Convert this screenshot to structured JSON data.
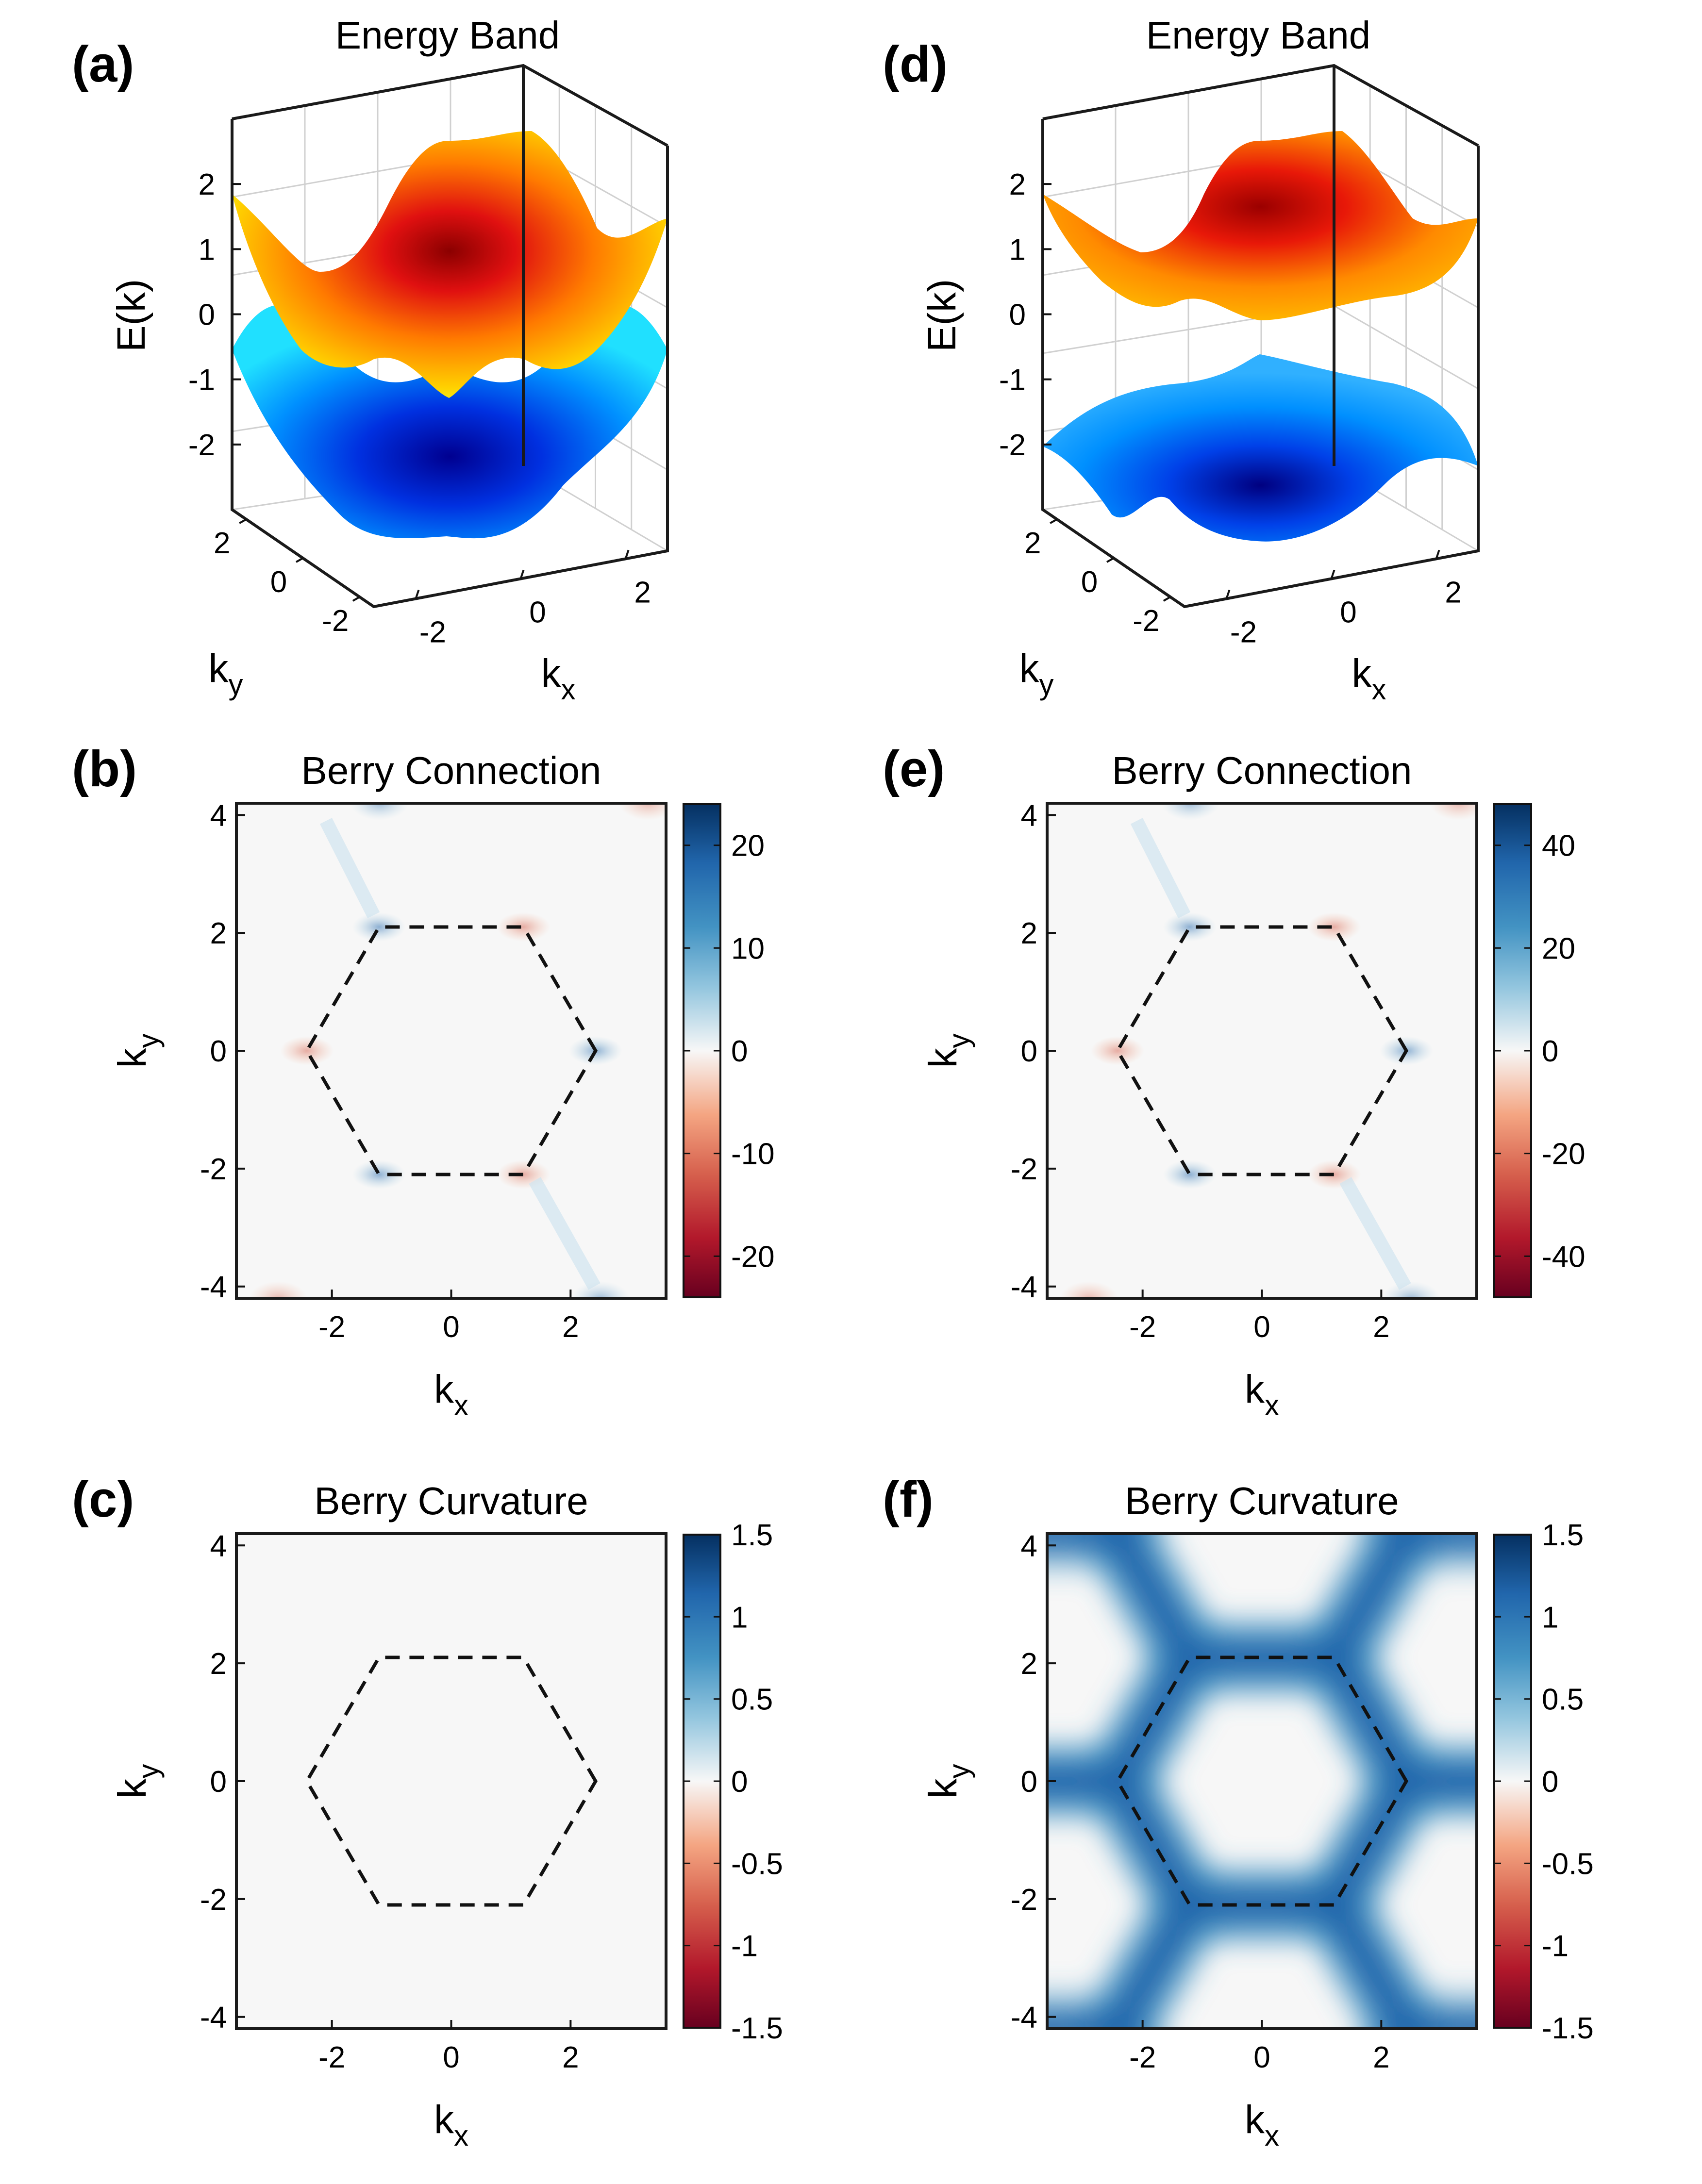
{
  "colors": {
    "frame": "#1a1a1a",
    "plot_bg": "#f7f7f7",
    "diverging_low": "#67001f",
    "diverging_mid": "#f7f7f7",
    "diverging_high": "#053061",
    "surface_colormap": "jet"
  },
  "chart_data": [
    {
      "panel": "(a)",
      "type": "surface3d",
      "title": "Energy Band",
      "xlabel": "k",
      "xlabel_sub": "x",
      "ylabel": "k",
      "ylabel_sub": "y",
      "zlabel": "E(k)",
      "x_ticks": [
        "-2",
        "0",
        "2"
      ],
      "y_ticks": [
        "-2",
        "0",
        "2"
      ],
      "z_ticks": [
        "2",
        "1",
        "0",
        "-1",
        "-2"
      ],
      "zlim": [
        -3,
        3
      ],
      "gap": 0
    },
    {
      "panel": "(b)",
      "type": "heatmap",
      "title": "Berry Connection",
      "xlabel": "k",
      "xlabel_sub": "x",
      "ylabel": "k",
      "ylabel_sub": "y",
      "xlim": [
        -3.6,
        3.6
      ],
      "ylim": [
        -4.2,
        4.2
      ],
      "x_ticks": [
        "-2",
        "0",
        "2"
      ],
      "y_ticks": [
        "4",
        "2",
        "0",
        "-2",
        "-4"
      ],
      "colorbar_ticks": [
        "20",
        "10",
        "0",
        "-10",
        "-20"
      ],
      "clim": [
        -24,
        24
      ],
      "hexagon": [
        [
          2.42,
          0
        ],
        [
          1.21,
          2.1
        ],
        [
          -1.21,
          2.1
        ],
        [
          -2.42,
          0
        ],
        [
          -1.21,
          -2.1
        ],
        [
          1.21,
          -2.1
        ]
      ]
    },
    {
      "panel": "(c)",
      "type": "heatmap",
      "title": "Berry Curvature",
      "xlabel": "k",
      "xlabel_sub": "x",
      "ylabel": "k",
      "ylabel_sub": "y",
      "xlim": [
        -3.6,
        3.6
      ],
      "ylim": [
        -4.2,
        4.2
      ],
      "x_ticks": [
        "-2",
        "0",
        "2"
      ],
      "y_ticks": [
        "4",
        "2",
        "0",
        "-2",
        "-4"
      ],
      "colorbar_ticks": [
        "1.5",
        "1",
        "0.5",
        "0",
        "-0.5",
        "-1",
        "-1.5"
      ],
      "clim": [
        -1.5,
        1.5
      ],
      "hexagon": [
        [
          2.42,
          0
        ],
        [
          1.21,
          2.1
        ],
        [
          -1.21,
          2.1
        ],
        [
          -2.42,
          0
        ],
        [
          -1.21,
          -2.1
        ],
        [
          1.21,
          -2.1
        ]
      ]
    },
    {
      "panel": "(d)",
      "type": "surface3d",
      "title": "Energy Band",
      "xlabel": "k",
      "xlabel_sub": "x",
      "ylabel": "k",
      "ylabel_sub": "y",
      "zlabel": "E(k)",
      "x_ticks": [
        "-2",
        "0",
        "2"
      ],
      "y_ticks": [
        "-2",
        "0",
        "2"
      ],
      "z_ticks": [
        "2",
        "1",
        "0",
        "-1",
        "-2"
      ],
      "zlim": [
        -3,
        3
      ],
      "gap": 1
    },
    {
      "panel": "(e)",
      "type": "heatmap",
      "title": "Berry Connection",
      "xlabel": "k",
      "xlabel_sub": "x",
      "ylabel": "k",
      "ylabel_sub": "y",
      "xlim": [
        -3.6,
        3.6
      ],
      "ylim": [
        -4.2,
        4.2
      ],
      "x_ticks": [
        "-2",
        "0",
        "2"
      ],
      "y_ticks": [
        "4",
        "2",
        "0",
        "-2",
        "-4"
      ],
      "colorbar_ticks": [
        "40",
        "20",
        "0",
        "-20",
        "-40"
      ],
      "clim": [
        -48,
        48
      ],
      "hexagon": [
        [
          2.42,
          0
        ],
        [
          1.21,
          2.1
        ],
        [
          -1.21,
          2.1
        ],
        [
          -2.42,
          0
        ],
        [
          -1.21,
          -2.1
        ],
        [
          1.21,
          -2.1
        ]
      ]
    },
    {
      "panel": "(f)",
      "type": "heatmap",
      "title": "Berry Curvature",
      "xlabel": "k",
      "xlabel_sub": "x",
      "ylabel": "k",
      "ylabel_sub": "y",
      "xlim": [
        -3.6,
        3.6
      ],
      "ylim": [
        -4.2,
        4.2
      ],
      "x_ticks": [
        "-2",
        "0",
        "2"
      ],
      "y_ticks": [
        "4",
        "2",
        "0",
        "-2",
        "-4"
      ],
      "colorbar_ticks": [
        "1.5",
        "1",
        "0.5",
        "0",
        "-0.5",
        "-1",
        "-1.5"
      ],
      "clim": [
        -1.5,
        1.5
      ],
      "hexagon": [
        [
          2.42,
          0
        ],
        [
          1.21,
          2.1
        ],
        [
          -1.21,
          2.1
        ],
        [
          -2.42,
          0
        ],
        [
          -1.21,
          -2.1
        ],
        [
          1.21,
          -2.1
        ]
      ]
    }
  ]
}
